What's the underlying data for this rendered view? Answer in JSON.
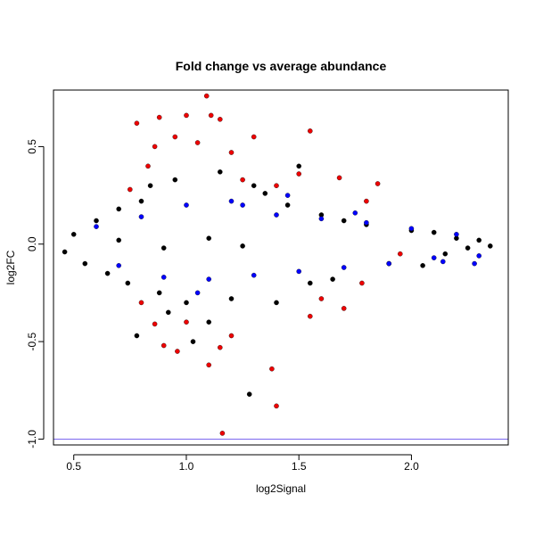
{
  "chart_data": {
    "type": "scatter",
    "title": "Fold change vs average abundance",
    "xlabel": "log2Signal",
    "ylabel": "log2FC",
    "xlim": [
      0.41,
      2.43
    ],
    "ylim": [
      -1.03,
      0.79
    ],
    "x_ticks": [
      {
        "value": 0.5,
        "label": "0.5"
      },
      {
        "value": 1.0,
        "label": "1.0"
      },
      {
        "value": 1.5,
        "label": "1.5"
      },
      {
        "value": 2.0,
        "label": "2.0"
      }
    ],
    "y_ticks": [
      {
        "value": -1.0,
        "label": "-1.0"
      },
      {
        "value": -0.5,
        "label": "-0.5"
      },
      {
        "value": 0.0,
        "label": "0.0"
      },
      {
        "value": 0.5,
        "label": "0.5"
      }
    ],
    "grid": false,
    "legend": "none",
    "reference_line": {
      "y": -1.0,
      "color": "#7b68ee"
    },
    "series_colors": {
      "not_significant": "#000000",
      "significant": "#0000ff",
      "large_change": "#ee0000"
    },
    "points": {
      "not_significant": [
        [
          0.46,
          -0.04
        ],
        [
          0.5,
          0.05
        ],
        [
          0.55,
          -0.1
        ],
        [
          0.6,
          0.12
        ],
        [
          0.65,
          -0.15
        ],
        [
          0.7,
          0.18
        ],
        [
          0.74,
          -0.2
        ],
        [
          0.8,
          0.22
        ],
        [
          0.84,
          0.3
        ],
        [
          0.88,
          -0.25
        ],
        [
          0.92,
          -0.35
        ],
        [
          0.95,
          0.33
        ],
        [
          1.0,
          -0.3
        ],
        [
          1.03,
          -0.5
        ],
        [
          1.1,
          -0.4
        ],
        [
          1.15,
          0.37
        ],
        [
          1.2,
          -0.28
        ],
        [
          1.28,
          -0.77
        ],
        [
          1.3,
          0.3
        ],
        [
          1.35,
          0.26
        ],
        [
          1.4,
          -0.3
        ],
        [
          1.45,
          0.2
        ],
        [
          1.5,
          0.4
        ],
        [
          1.55,
          -0.2
        ],
        [
          1.6,
          0.15
        ],
        [
          1.65,
          -0.18
        ],
        [
          1.7,
          0.12
        ],
        [
          1.8,
          0.1
        ],
        [
          1.9,
          -0.1
        ],
        [
          2.0,
          0.07
        ],
        [
          2.05,
          -0.11
        ],
        [
          2.1,
          0.06
        ],
        [
          2.15,
          -0.05
        ],
        [
          2.2,
          0.03
        ],
        [
          2.25,
          -0.02
        ],
        [
          2.3,
          0.02
        ],
        [
          2.35,
          -0.01
        ],
        [
          0.7,
          0.02
        ],
        [
          0.9,
          -0.02
        ],
        [
          1.1,
          0.03
        ],
        [
          1.25,
          -0.01
        ],
        [
          0.78,
          -0.47
        ]
      ],
      "significant": [
        [
          0.6,
          0.09
        ],
        [
          0.7,
          -0.11
        ],
        [
          0.8,
          0.14
        ],
        [
          0.9,
          -0.17
        ],
        [
          1.0,
          0.2
        ],
        [
          1.1,
          -0.18
        ],
        [
          1.2,
          0.22
        ],
        [
          1.3,
          -0.16
        ],
        [
          1.4,
          0.15
        ],
        [
          1.5,
          -0.14
        ],
        [
          1.6,
          0.13
        ],
        [
          1.7,
          -0.12
        ],
        [
          1.8,
          0.11
        ],
        [
          1.9,
          -0.1
        ],
        [
          2.0,
          0.08
        ],
        [
          2.1,
          -0.07
        ],
        [
          2.2,
          0.05
        ],
        [
          2.3,
          -0.06
        ],
        [
          2.14,
          -0.09
        ],
        [
          2.28,
          -0.1
        ],
        [
          1.75,
          0.16
        ],
        [
          1.45,
          0.25
        ],
        [
          1.25,
          0.2
        ],
        [
          1.05,
          -0.25
        ]
      ],
      "large_change": [
        [
          1.09,
          0.76
        ],
        [
          0.78,
          0.62
        ],
        [
          0.88,
          0.65
        ],
        [
          1.0,
          0.66
        ],
        [
          1.11,
          0.66
        ],
        [
          1.15,
          0.64
        ],
        [
          1.55,
          0.58
        ],
        [
          1.3,
          0.55
        ],
        [
          0.95,
          0.55
        ],
        [
          0.86,
          0.5
        ],
        [
          1.05,
          0.52
        ],
        [
          1.2,
          0.47
        ],
        [
          0.83,
          0.4
        ],
        [
          1.5,
          0.36
        ],
        [
          1.4,
          0.3
        ],
        [
          1.25,
          0.33
        ],
        [
          1.68,
          0.34
        ],
        [
          1.85,
          0.31
        ],
        [
          1.8,
          0.22
        ],
        [
          1.95,
          -0.05
        ],
        [
          1.78,
          -0.2
        ],
        [
          1.7,
          -0.33
        ],
        [
          1.6,
          -0.28
        ],
        [
          1.55,
          -0.37
        ],
        [
          0.86,
          -0.41
        ],
        [
          0.9,
          -0.52
        ],
        [
          0.96,
          -0.55
        ],
        [
          1.1,
          -0.62
        ],
        [
          1.15,
          -0.53
        ],
        [
          1.2,
          -0.47
        ],
        [
          1.38,
          -0.64
        ],
        [
          1.4,
          -0.83
        ],
        [
          1.16,
          -0.97
        ],
        [
          1.0,
          -0.4
        ],
        [
          0.8,
          -0.3
        ],
        [
          0.75,
          0.28
        ]
      ]
    }
  }
}
